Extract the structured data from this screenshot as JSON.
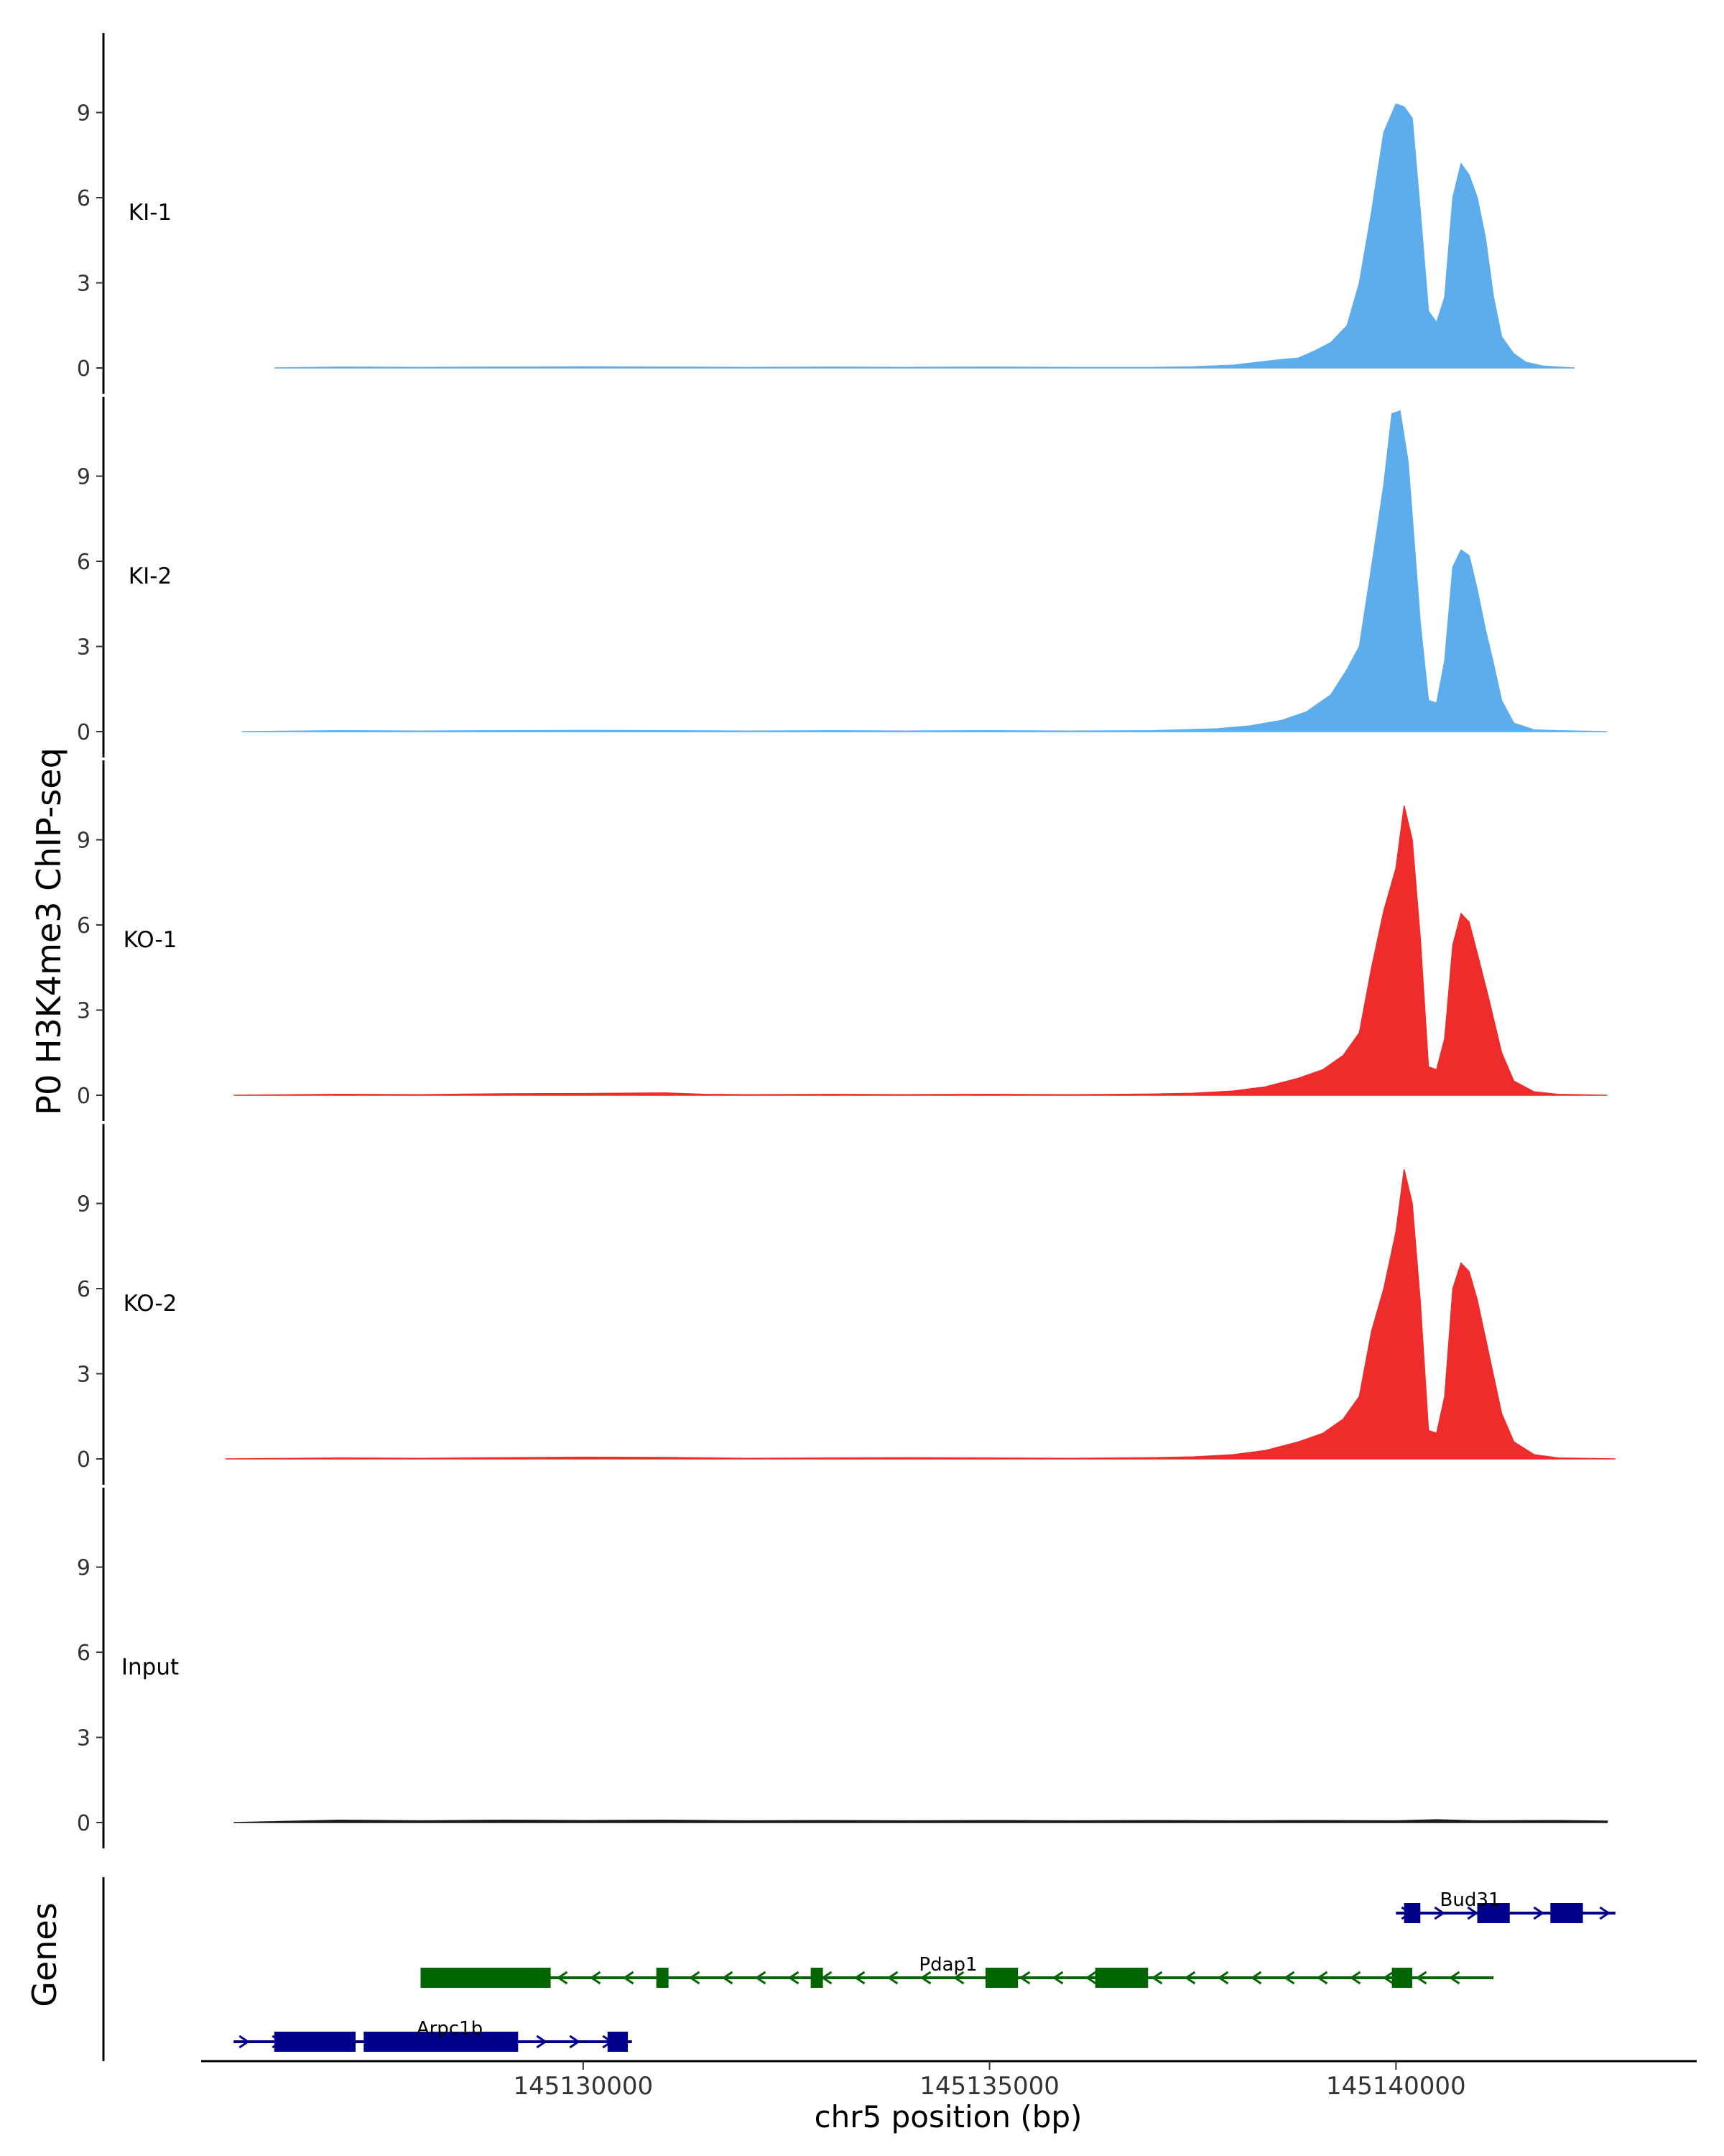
{
  "chart_data": {
    "type": "area",
    "ylabel": "P0 H3K4me3 ChIP-seq",
    "xlabel": "chr5 position (bp)",
    "x_ticks": [
      145130000,
      145135000,
      145140000
    ],
    "xlim": [
      145125300,
      145143700
    ],
    "ylim": [
      0,
      11.8
    ],
    "y_ticks": [
      0,
      3,
      6,
      9
    ],
    "tracks": [
      {
        "name": "KI-1",
        "color": "#5DADEC",
        "points": [
          [
            145126200,
            0
          ],
          [
            145127000,
            0.03
          ],
          [
            145128000,
            0.02
          ],
          [
            145129000,
            0.03
          ],
          [
            145130000,
            0.04
          ],
          [
            145131000,
            0.03
          ],
          [
            145132000,
            0.02
          ],
          [
            145133000,
            0.03
          ],
          [
            145134000,
            0.02
          ],
          [
            145135000,
            0.03
          ],
          [
            145136000,
            0.02
          ],
          [
            145137000,
            0.02
          ],
          [
            145137500,
            0.04
          ],
          [
            145138000,
            0.1
          ],
          [
            145138300,
            0.2
          ],
          [
            145138600,
            0.3
          ],
          [
            145138800,
            0.35
          ],
          [
            145139000,
            0.6
          ],
          [
            145139200,
            0.9
          ],
          [
            145139400,
            1.5
          ],
          [
            145139550,
            3.0
          ],
          [
            145139700,
            5.5
          ],
          [
            145139850,
            8.3
          ],
          [
            145140000,
            9.3
          ],
          [
            145140100,
            9.2
          ],
          [
            145140200,
            8.8
          ],
          [
            145140300,
            5.5
          ],
          [
            145140400,
            2.0
          ],
          [
            145140500,
            1.6
          ],
          [
            145140600,
            2.5
          ],
          [
            145140700,
            6.0
          ],
          [
            145140800,
            7.2
          ],
          [
            145140900,
            6.8
          ],
          [
            145141000,
            6.0
          ],
          [
            145141100,
            4.6
          ],
          [
            145141200,
            2.5
          ],
          [
            145141300,
            1.1
          ],
          [
            145141450,
            0.5
          ],
          [
            145141600,
            0.2
          ],
          [
            145141800,
            0.07
          ],
          [
            145142000,
            0.03
          ],
          [
            145142200,
            0
          ]
        ]
      },
      {
        "name": "KI-2",
        "color": "#5DADEC",
        "points": [
          [
            145125800,
            0
          ],
          [
            145127000,
            0.03
          ],
          [
            145128000,
            0.02
          ],
          [
            145129000,
            0.03
          ],
          [
            145130000,
            0.04
          ],
          [
            145131000,
            0.03
          ],
          [
            145132000,
            0.02
          ],
          [
            145133000,
            0.03
          ],
          [
            145134000,
            0.02
          ],
          [
            145135000,
            0.03
          ],
          [
            145136000,
            0.02
          ],
          [
            145137000,
            0.03
          ],
          [
            145137800,
            0.1
          ],
          [
            145138200,
            0.2
          ],
          [
            145138600,
            0.4
          ],
          [
            145138900,
            0.7
          ],
          [
            145139200,
            1.3
          ],
          [
            145139400,
            2.2
          ],
          [
            145139550,
            3.0
          ],
          [
            145139700,
            5.8
          ],
          [
            145139850,
            8.7
          ],
          [
            145139950,
            11.2
          ],
          [
            145140050,
            11.3
          ],
          [
            145140150,
            9.5
          ],
          [
            145140300,
            3.8
          ],
          [
            145140400,
            1.1
          ],
          [
            145140500,
            1.0
          ],
          [
            145140600,
            2.5
          ],
          [
            145140700,
            5.8
          ],
          [
            145140800,
            6.4
          ],
          [
            145140900,
            6.2
          ],
          [
            145141000,
            5.0
          ],
          [
            145141100,
            3.6
          ],
          [
            145141200,
            2.4
          ],
          [
            145141300,
            1.1
          ],
          [
            145141450,
            0.3
          ],
          [
            145141700,
            0.06
          ],
          [
            145142000,
            0.03
          ],
          [
            145142600,
            0
          ]
        ]
      },
      {
        "name": "KO-1",
        "color": "#EE2C2C",
        "points": [
          [
            145125700,
            0
          ],
          [
            145127000,
            0.03
          ],
          [
            145128000,
            0.02
          ],
          [
            145129000,
            0.05
          ],
          [
            145130000,
            0.06
          ],
          [
            145131000,
            0.08
          ],
          [
            145131500,
            0.03
          ],
          [
            145132000,
            0.02
          ],
          [
            145133000,
            0.03
          ],
          [
            145134000,
            0.02
          ],
          [
            145135000,
            0.03
          ],
          [
            145136000,
            0.02
          ],
          [
            145137000,
            0.04
          ],
          [
            145137500,
            0.07
          ],
          [
            145138000,
            0.15
          ],
          [
            145138400,
            0.3
          ],
          [
            145138800,
            0.6
          ],
          [
            145139100,
            0.9
          ],
          [
            145139350,
            1.4
          ],
          [
            145139550,
            2.2
          ],
          [
            145139700,
            4.5
          ],
          [
            145139850,
            6.5
          ],
          [
            145140000,
            8.0
          ],
          [
            145140100,
            10.2
          ],
          [
            145140200,
            9.0
          ],
          [
            145140300,
            5.5
          ],
          [
            145140400,
            1.0
          ],
          [
            145140500,
            0.9
          ],
          [
            145140600,
            2.0
          ],
          [
            145140700,
            5.3
          ],
          [
            145140800,
            6.4
          ],
          [
            145140900,
            6.1
          ],
          [
            145141000,
            5.0
          ],
          [
            145141150,
            3.3
          ],
          [
            145141300,
            1.5
          ],
          [
            145141450,
            0.5
          ],
          [
            145141700,
            0.12
          ],
          [
            145142000,
            0.03
          ],
          [
            145142600,
            0
          ]
        ]
      },
      {
        "name": "KO-2",
        "color": "#EE2C2C",
        "points": [
          [
            145125600,
            0
          ],
          [
            145127000,
            0.03
          ],
          [
            145128000,
            0.02
          ],
          [
            145129000,
            0.04
          ],
          [
            145130000,
            0.06
          ],
          [
            145131000,
            0.05
          ],
          [
            145132000,
            0.02
          ],
          [
            145133000,
            0.03
          ],
          [
            145134000,
            0.04
          ],
          [
            145135000,
            0.03
          ],
          [
            145136000,
            0.02
          ],
          [
            145137000,
            0.04
          ],
          [
            145137500,
            0.07
          ],
          [
            145138000,
            0.15
          ],
          [
            145138400,
            0.3
          ],
          [
            145138800,
            0.6
          ],
          [
            145139100,
            0.9
          ],
          [
            145139350,
            1.4
          ],
          [
            145139550,
            2.2
          ],
          [
            145139700,
            4.5
          ],
          [
            145139850,
            6.0
          ],
          [
            145140000,
            8.0
          ],
          [
            145140100,
            10.2
          ],
          [
            145140200,
            9.0
          ],
          [
            145140300,
            5.5
          ],
          [
            145140400,
            1.0
          ],
          [
            145140500,
            0.9
          ],
          [
            145140600,
            2.2
          ],
          [
            145140700,
            6.0
          ],
          [
            145140800,
            6.9
          ],
          [
            145140900,
            6.6
          ],
          [
            145141000,
            5.6
          ],
          [
            145141150,
            3.6
          ],
          [
            145141300,
            1.6
          ],
          [
            145141450,
            0.6
          ],
          [
            145141700,
            0.15
          ],
          [
            145142000,
            0.03
          ],
          [
            145142700,
            0
          ]
        ]
      },
      {
        "name": "Input",
        "color": "#1A1A1A",
        "points": [
          [
            145125700,
            0
          ],
          [
            145127000,
            0.08
          ],
          [
            145128000,
            0.06
          ],
          [
            145129000,
            0.08
          ],
          [
            145130000,
            0.07
          ],
          [
            145131000,
            0.08
          ],
          [
            145132000,
            0.06
          ],
          [
            145133000,
            0.07
          ],
          [
            145134000,
            0.06
          ],
          [
            145135000,
            0.07
          ],
          [
            145136000,
            0.06
          ],
          [
            145137000,
            0.07
          ],
          [
            145138000,
            0.06
          ],
          [
            145139000,
            0.07
          ],
          [
            145140000,
            0.06
          ],
          [
            145140500,
            0.1
          ],
          [
            145141000,
            0.06
          ],
          [
            145142000,
            0.07
          ],
          [
            145142600,
            0.05
          ]
        ]
      }
    ],
    "genes_label": "Genes",
    "genes": [
      {
        "name": "Bud31",
        "strand": "+",
        "color": "#00008B",
        "row": 1,
        "start": 145140000,
        "end": 145142700,
        "exons": [
          [
            145140100,
            145140300
          ],
          [
            145141000,
            145141400
          ],
          [
            145141900,
            145142300
          ]
        ]
      },
      {
        "name": "Pdap1",
        "strand": "-",
        "color": "#006400",
        "row": 2,
        "start": 145128000,
        "end": 145141200,
        "exons": [
          [
            145128000,
            145129600
          ],
          [
            145130900,
            145131050
          ],
          [
            145132800,
            145132950
          ],
          [
            145134950,
            145135350
          ],
          [
            145136300,
            145136950
          ],
          [
            145139950,
            145140200
          ]
        ]
      },
      {
        "name": "Arpc1b",
        "strand": "+",
        "color": "#00008B",
        "row": 3,
        "start": 145125700,
        "end": 145130600,
        "exons": [
          [
            145126200,
            145127200
          ],
          [
            145127300,
            145129200
          ],
          [
            145130300,
            145130550
          ]
        ]
      }
    ]
  }
}
